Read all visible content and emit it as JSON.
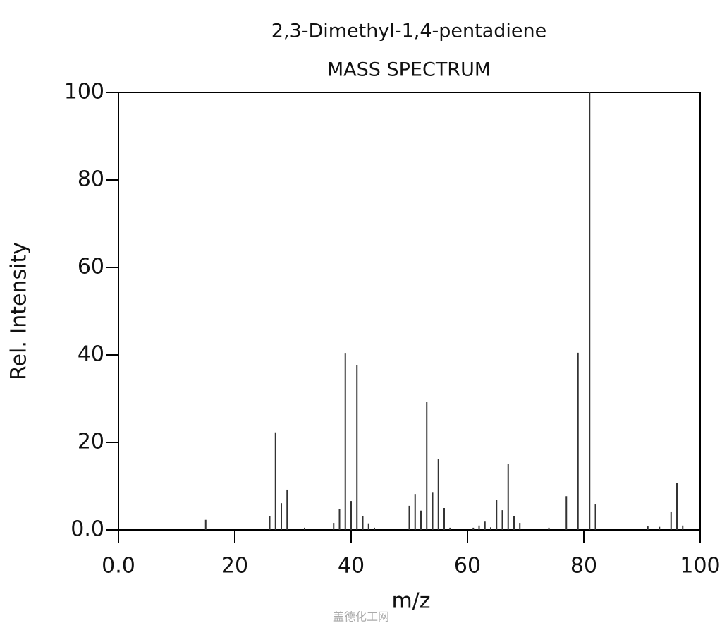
{
  "chart_data": {
    "type": "stem",
    "title": "2,3-Dimethyl-1,4-pentadiene",
    "subtitle": "MASS SPECTRUM",
    "x_label": "m/z",
    "y_label": "Rel. Intensity",
    "x": [
      15,
      26,
      27,
      28,
      29,
      32,
      37,
      38,
      39,
      40,
      41,
      42,
      43,
      44,
      50,
      51,
      52,
      53,
      54,
      55,
      56,
      57,
      61,
      62,
      63,
      64,
      65,
      66,
      67,
      68,
      69,
      74,
      77,
      79,
      81,
      82,
      91,
      93,
      95,
      96,
      97
    ],
    "values": [
      2.3,
      3.1,
      22.3,
      6.1,
      9.2,
      0.5,
      1.6,
      4.8,
      40.3,
      6.6,
      37.7,
      3.2,
      1.5,
      0.5,
      5.5,
      8.2,
      4.4,
      29.2,
      8.5,
      16.3,
      5.0,
      0.5,
      0.5,
      1.0,
      1.9,
      0.6,
      6.9,
      4.5,
      15.0,
      3.2,
      1.6,
      0.5,
      7.7,
      40.5,
      100,
      5.8,
      0.8,
      0.7,
      4.2,
      10.8,
      1.0
    ],
    "color": "#333333",
    "xlim": [
      0,
      100
    ],
    "ylim": [
      0,
      100
    ],
    "xticks": [
      {
        "value": 0,
        "label": "0.0"
      },
      20,
      40,
      60,
      80,
      100
    ],
    "yticks": [
      {
        "value": 0,
        "label": "0.0"
      },
      20,
      40,
      60,
      80,
      100
    ],
    "watermark": "盖德化工网"
  }
}
